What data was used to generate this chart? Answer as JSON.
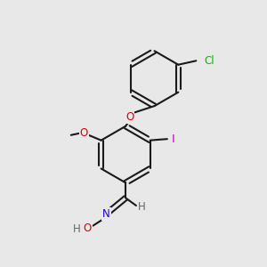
{
  "bg_color": "#e8e8e8",
  "bond_color": "#1a1a1a",
  "bond_lw": 1.5,
  "atom_colors": {
    "Cl": "#00bb00",
    "O": "#dd0000",
    "N": "#2200dd",
    "I": "#cc00cc",
    "H": "#666666",
    "C": "#1a1a1a"
  },
  "font_size": 8.5
}
